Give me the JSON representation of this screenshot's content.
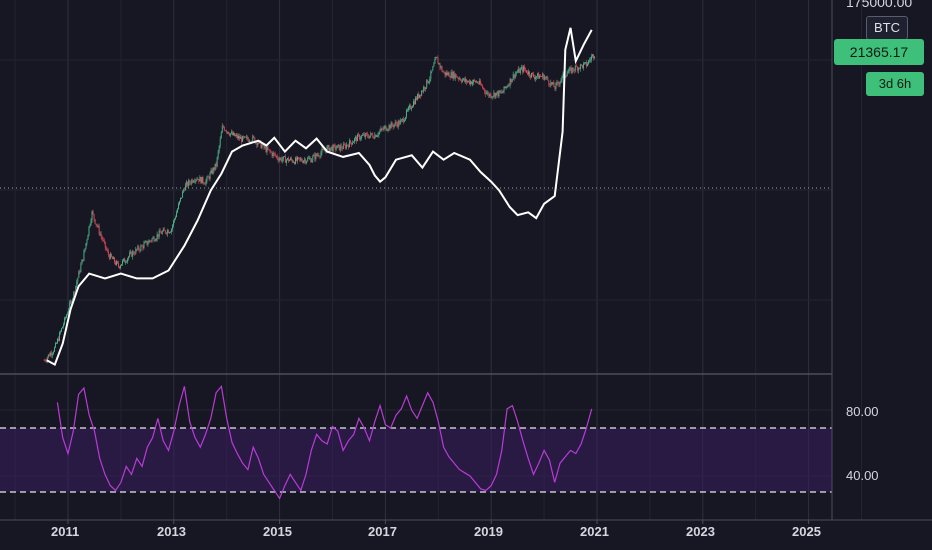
{
  "chart_data": [
    {
      "type": "candlestick",
      "symbol": "BTC",
      "scale": "log",
      "y_top_tick": "175000.00",
      "last_price": "21365.17",
      "countdown": "3d 6h",
      "x_tick_labels": [
        "2011",
        "2013",
        "2015",
        "2017",
        "2019",
        "2021",
        "2023",
        "2025"
      ],
      "price_path": [
        [
          2010.55,
          0.06
        ],
        [
          2010.75,
          0.1
        ],
        [
          2010.9,
          0.25
        ],
        [
          2011.1,
          0.9
        ],
        [
          2011.3,
          5
        ],
        [
          2011.45,
          28
        ],
        [
          2011.6,
          12
        ],
        [
          2011.75,
          5
        ],
        [
          2011.95,
          3
        ],
        [
          2012.2,
          5
        ],
        [
          2012.5,
          8
        ],
        [
          2012.75,
          12
        ],
        [
          2012.95,
          14
        ],
        [
          2013.2,
          80
        ],
        [
          2013.4,
          120
        ],
        [
          2013.6,
          100
        ],
        [
          2013.8,
          200
        ],
        [
          2013.92,
          1000
        ],
        [
          2014.1,
          700
        ],
        [
          2014.3,
          580
        ],
        [
          2014.5,
          600
        ],
        [
          2014.75,
          380
        ],
        [
          2015.0,
          260
        ],
        [
          2015.3,
          240
        ],
        [
          2015.6,
          260
        ],
        [
          2015.9,
          400
        ],
        [
          2016.2,
          420
        ],
        [
          2016.5,
          650
        ],
        [
          2016.8,
          700
        ],
        [
          2017.0,
          950
        ],
        [
          2017.3,
          1200
        ],
        [
          2017.5,
          2500
        ],
        [
          2017.7,
          4500
        ],
        [
          2017.85,
          8000
        ],
        [
          2017.96,
          17000
        ],
        [
          2018.1,
          9000
        ],
        [
          2018.3,
          8500
        ],
        [
          2018.5,
          6500
        ],
        [
          2018.75,
          6300
        ],
        [
          2018.95,
          3700
        ],
        [
          2019.2,
          4000
        ],
        [
          2019.45,
          9000
        ],
        [
          2019.6,
          11000
        ],
        [
          2019.8,
          8000
        ],
        [
          2020.0,
          8000
        ],
        [
          2020.2,
          5000
        ],
        [
          2020.4,
          9000
        ],
        [
          2020.6,
          11500
        ],
        [
          2020.8,
          13000
        ],
        [
          2020.9,
          18000
        ],
        [
          2020.97,
          21365
        ]
      ],
      "overlay_path": [
        [
          2010.6,
          0.06
        ],
        [
          2010.75,
          0.05
        ],
        [
          2010.9,
          0.12
        ],
        [
          2011.05,
          0.5
        ],
        [
          2011.2,
          1.3
        ],
        [
          2011.4,
          2.2
        ],
        [
          2011.7,
          1.8
        ],
        [
          2012.0,
          2.2
        ],
        [
          2012.3,
          1.8
        ],
        [
          2012.6,
          1.8
        ],
        [
          2012.9,
          2.5
        ],
        [
          2013.2,
          7
        ],
        [
          2013.45,
          20
        ],
        [
          2013.7,
          70
        ],
        [
          2013.9,
          140
        ],
        [
          2014.1,
          350
        ],
        [
          2014.3,
          450
        ],
        [
          2014.6,
          550
        ],
        [
          2014.75,
          450
        ],
        [
          2014.9,
          620
        ],
        [
          2015.1,
          350
        ],
        [
          2015.3,
          550
        ],
        [
          2015.5,
          400
        ],
        [
          2015.7,
          600
        ],
        [
          2015.9,
          350
        ],
        [
          2016.2,
          280
        ],
        [
          2016.5,
          330
        ],
        [
          2016.7,
          200
        ],
        [
          2016.8,
          130
        ],
        [
          2016.9,
          100
        ],
        [
          2017.0,
          120
        ],
        [
          2017.2,
          250
        ],
        [
          2017.5,
          300
        ],
        [
          2017.7,
          180
        ],
        [
          2017.9,
          350
        ],
        [
          2018.1,
          250
        ],
        [
          2018.3,
          330
        ],
        [
          2018.6,
          250
        ],
        [
          2018.8,
          150
        ],
        [
          2019.0,
          100
        ],
        [
          2019.15,
          70
        ],
        [
          2019.35,
          35
        ],
        [
          2019.5,
          25
        ],
        [
          2019.7,
          28
        ],
        [
          2019.85,
          22
        ],
        [
          2020.0,
          40
        ],
        [
          2020.2,
          55
        ],
        [
          2020.35,
          800
        ],
        [
          2020.4,
          24000
        ],
        [
          2020.5,
          60000
        ],
        [
          2020.6,
          15000
        ],
        [
          2020.75,
          30000
        ],
        [
          2020.9,
          55000
        ]
      ]
    },
    {
      "type": "line",
      "indicator": "RSI",
      "y_tick_labels": [
        "80.00",
        "40.00"
      ],
      "bands": [
        70,
        30
      ],
      "ylim": [
        24,
        104
      ],
      "x": [
        2010.8,
        2010.9,
        2011.0,
        2011.1,
        2011.2,
        2011.3,
        2011.4,
        2011.5,
        2011.6,
        2011.7,
        2011.8,
        2011.9,
        2012.0,
        2012.1,
        2012.2,
        2012.3,
        2012.4,
        2012.5,
        2012.6,
        2012.7,
        2012.8,
        2012.9,
        2013.0,
        2013.1,
        2013.2,
        2013.3,
        2013.4,
        2013.5,
        2013.6,
        2013.7,
        2013.8,
        2013.9,
        2014.0,
        2014.1,
        2014.2,
        2014.3,
        2014.4,
        2014.5,
        2014.6,
        2014.7,
        2014.8,
        2014.9,
        2015.0,
        2015.1,
        2015.2,
        2015.3,
        2015.4,
        2015.5,
        2015.6,
        2015.7,
        2015.8,
        2015.9,
        2016.0,
        2016.1,
        2016.2,
        2016.3,
        2016.4,
        2016.5,
        2016.6,
        2016.7,
        2016.8,
        2016.9,
        2017.0,
        2017.1,
        2017.2,
        2017.3,
        2017.4,
        2017.5,
        2017.6,
        2017.7,
        2017.8,
        2017.9,
        2018.0,
        2018.1,
        2018.2,
        2018.3,
        2018.4,
        2018.5,
        2018.6,
        2018.7,
        2018.8,
        2018.9,
        2019.0,
        2019.1,
        2019.2,
        2019.3,
        2019.4,
        2019.5,
        2019.6,
        2019.7,
        2019.8,
        2019.9,
        2020.0,
        2020.1,
        2020.2,
        2020.3,
        2020.4,
        2020.5,
        2020.6,
        2020.7,
        2020.8,
        2020.9
      ],
      "values": [
        90,
        68,
        58,
        72,
        95,
        99,
        82,
        72,
        55,
        45,
        38,
        35,
        40,
        50,
        45,
        55,
        50,
        62,
        68,
        80,
        66,
        60,
        72,
        88,
        100,
        78,
        68,
        62,
        70,
        80,
        96,
        100,
        80,
        65,
        58,
        52,
        48,
        62,
        55,
        45,
        40,
        35,
        30,
        38,
        45,
        40,
        35,
        45,
        60,
        70,
        66,
        64,
        75,
        72,
        60,
        66,
        70,
        80,
        74,
        66,
        78,
        88,
        76,
        74,
        82,
        86,
        94,
        85,
        80,
        88,
        96,
        90,
        78,
        62,
        56,
        52,
        48,
        46,
        44,
        40,
        36,
        35,
        38,
        45,
        60,
        86,
        88,
        78,
        66,
        55,
        45,
        52,
        60,
        54,
        40,
        52,
        56,
        60,
        58,
        64,
        74,
        86
      ]
    }
  ]
}
